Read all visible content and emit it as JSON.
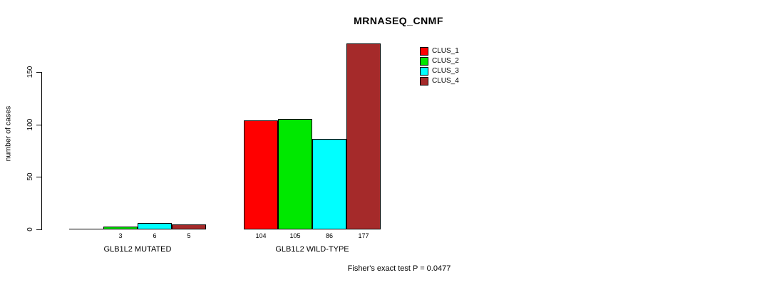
{
  "title": "MRNASEQ_CNMF",
  "y_axis_title": "number of cases",
  "footnote": "Fisher's exact test P = 0.0477",
  "chart_data": {
    "type": "bar",
    "title": "MRNASEQ_CNMF",
    "xlabel": "",
    "ylabel": "number of cases",
    "categories": [
      "GLB1L2 MUTATED",
      "GLB1L2 WILD-TYPE"
    ],
    "series": [
      {
        "name": "CLUS_1",
        "color": "#ff0000",
        "values": [
          0,
          104
        ]
      },
      {
        "name": "CLUS_2",
        "color": "#00e800",
        "values": [
          3,
          105
        ]
      },
      {
        "name": "CLUS_3",
        "color": "#00ffff",
        "values": [
          6,
          86
        ]
      },
      {
        "name": "CLUS_4",
        "color": "#a52a2a",
        "values": [
          5,
          177
        ]
      }
    ],
    "bar_value_labels": [
      [
        "",
        "3",
        "6",
        "5"
      ],
      [
        "104",
        "105",
        "86",
        "177"
      ]
    ],
    "y_ticks": [
      0,
      50,
      100,
      150
    ],
    "ylim": [
      0,
      180
    ],
    "grid": false,
    "legend_position": "top-right",
    "legend_entries": [
      "CLUS_1",
      "CLUS_2",
      "CLUS_3",
      "CLUS_4"
    ],
    "annotation": "Fisher's exact test P = 0.0477"
  }
}
